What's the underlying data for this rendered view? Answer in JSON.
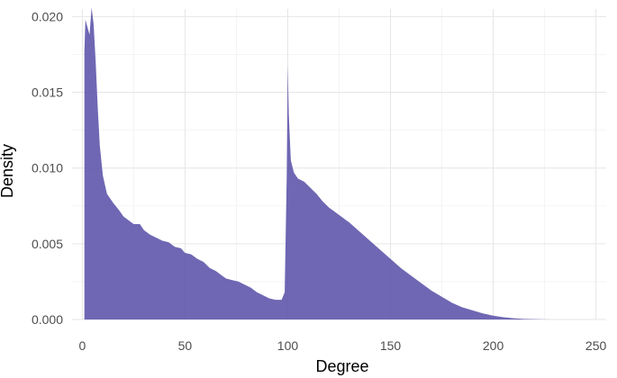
{
  "chart_data": {
    "type": "area",
    "xlabel": "Degree",
    "ylabel": "Density",
    "xlim": [
      -5,
      255
    ],
    "ylim": [
      0,
      0.0205
    ],
    "xticks": [
      0,
      50,
      100,
      150,
      200,
      250
    ],
    "xtick_labels": [
      "0",
      "50",
      "100",
      "150",
      "200",
      "250"
    ],
    "yticks": [
      0,
      0.005,
      0.01,
      0.015,
      0.02
    ],
    "ytick_labels": [
      "0.000",
      "0.005",
      "0.010",
      "0.015",
      "0.020"
    ],
    "grid": true,
    "fill_color": "#5b52a9",
    "series": [
      {
        "x": [
          1,
          1,
          1.5,
          2.5,
          3.5,
          4.5,
          5.5,
          6.5,
          7.5,
          8.5,
          10,
          12,
          15,
          18,
          20,
          22,
          25,
          28,
          30,
          33,
          36,
          39,
          42,
          45,
          48,
          50,
          53,
          56,
          59,
          62,
          65,
          68,
          70,
          73,
          76,
          79,
          82,
          85,
          88,
          91,
          94,
          97,
          98.5,
          99.5,
          100,
          100.5,
          101.5,
          103,
          105,
          108,
          111,
          114,
          117,
          120,
          125,
          130,
          135,
          140,
          145,
          150,
          155,
          160,
          165,
          170,
          175,
          180,
          185,
          190,
          195,
          200,
          205,
          210,
          215,
          220,
          225,
          229
        ],
        "y": [
          0,
          0.0177,
          0.0198,
          0.0193,
          0.0188,
          0.0206,
          0.0195,
          0.017,
          0.014,
          0.0115,
          0.0095,
          0.0083,
          0.0077,
          0.0072,
          0.0068,
          0.0066,
          0.0063,
          0.0063,
          0.0059,
          0.0056,
          0.0054,
          0.0052,
          0.0051,
          0.0048,
          0.0047,
          0.0044,
          0.0043,
          0.004,
          0.0038,
          0.0034,
          0.0032,
          0.0029,
          0.0027,
          0.0026,
          0.0025,
          0.0023,
          0.0021,
          0.0018,
          0.0016,
          0.0014,
          0.0013,
          0.0013,
          0.0018,
          0.0095,
          0.0168,
          0.0135,
          0.0105,
          0.0097,
          0.0093,
          0.0091,
          0.0087,
          0.0083,
          0.0078,
          0.0074,
          0.0069,
          0.0064,
          0.0058,
          0.0052,
          0.0046,
          0.004,
          0.0034,
          0.0029,
          0.0024,
          0.0019,
          0.0015,
          0.0011,
          0.0008,
          0.0006,
          0.0004,
          0.00025,
          0.00015,
          8e-05,
          4e-05,
          2e-05,
          5e-06,
          0
        ]
      }
    ]
  }
}
